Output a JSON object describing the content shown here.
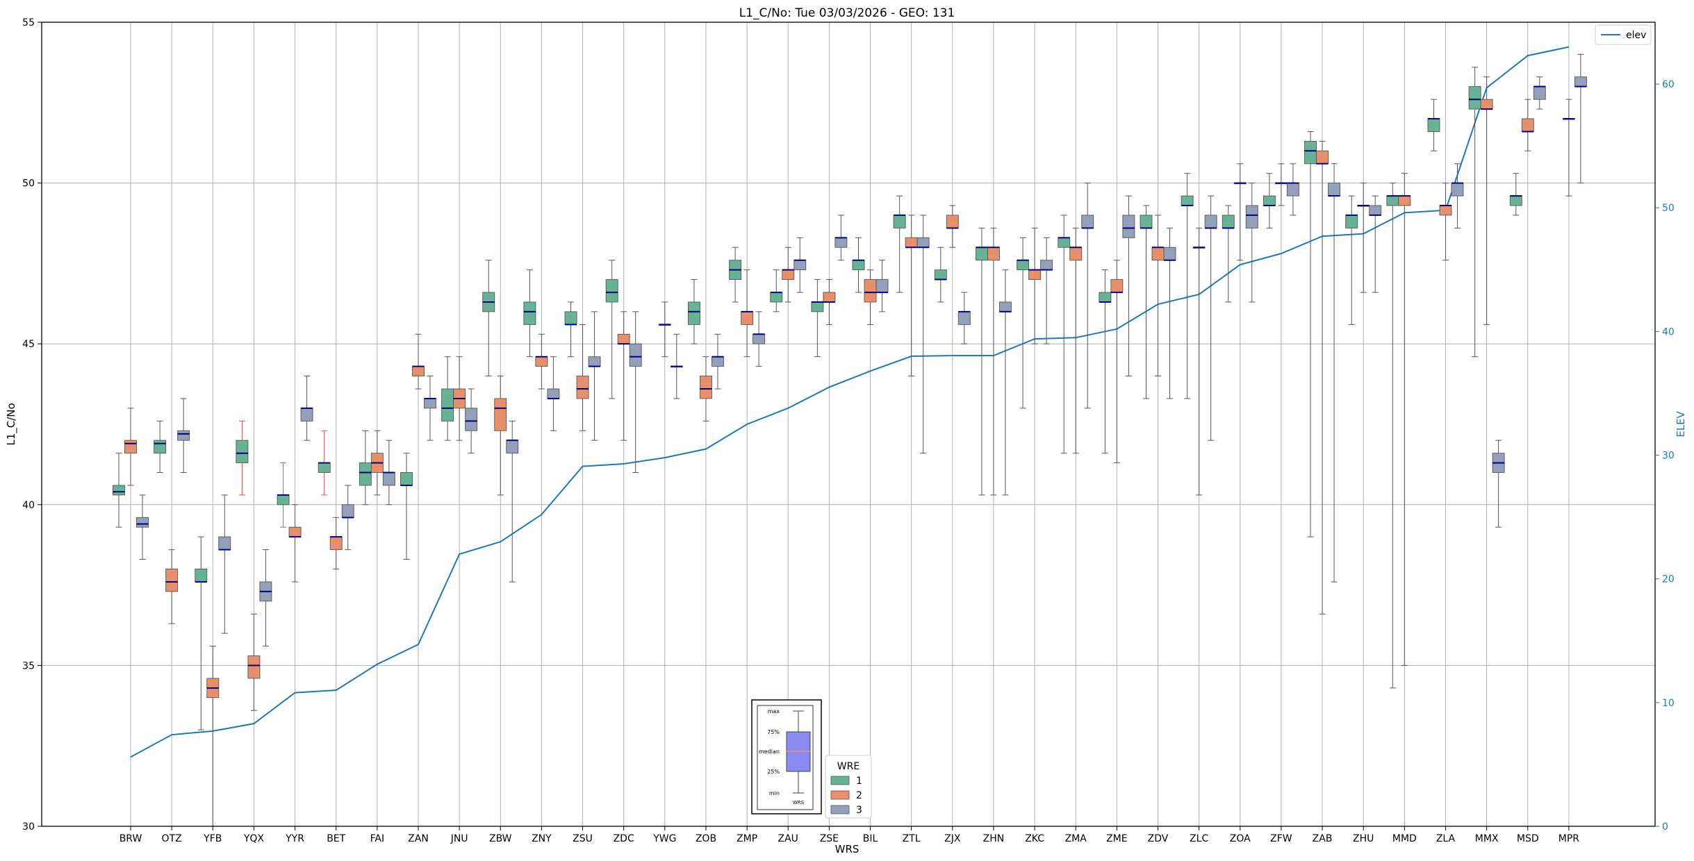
{
  "chart_data": {
    "type": "box",
    "title": "L1_C/No: Tue 03/03/2026 - GEO: 131",
    "xlabel": "WRS",
    "ylabel": "L1_C/No",
    "y2label": "ELEV",
    "ylim": [
      30,
      55
    ],
    "y2lim": [
      0,
      65
    ],
    "yticks": [
      30,
      35,
      40,
      45,
      50,
      55
    ],
    "y2ticks": [
      0,
      10,
      20,
      30,
      40,
      50,
      60
    ],
    "grid": true,
    "categories": [
      "BRW",
      "OTZ",
      "YFB",
      "YQX",
      "YYR",
      "BET",
      "FAI",
      "ZAN",
      "JNU",
      "ZBW",
      "ZNY",
      "ZSU",
      "ZDC",
      "YWG",
      "ZOB",
      "ZMP",
      "ZAU",
      "ZSE",
      "BIL",
      "ZTL",
      "ZJX",
      "ZHN",
      "ZKC",
      "ZMA",
      "ZME",
      "ZDV",
      "ZLC",
      "ZOA",
      "ZFW",
      "ZAB",
      "ZHU",
      "MMD",
      "ZLA",
      "MMX",
      "MSD",
      "MPR"
    ],
    "series_colors": {
      "1": "#66b395",
      "2": "#e8906c",
      "3": "#949fbb"
    },
    "line_color": "#1f77b4",
    "median_color": "#000080",
    "elev_line": {
      "name": "elev",
      "values": [
        5.6,
        7.4,
        7.7,
        8.3,
        10.8,
        11.0,
        13.1,
        14.7,
        22.0,
        23.0,
        25.2,
        29.1,
        29.3,
        29.8,
        30.5,
        32.5,
        33.8,
        35.5,
        36.8,
        38.0,
        38.05,
        38.05,
        39.4,
        39.5,
        40.2,
        42.2,
        43.0,
        45.4,
        46.3,
        47.7,
        47.9,
        49.6,
        49.8,
        59.7,
        62.3,
        63.0
      ]
    },
    "boxes": [
      {
        "cat": "BRW",
        "wre": 1,
        "min": 39.3,
        "q1": 40.3,
        "med": 40.4,
        "q3": 40.6,
        "max": 41.6
      },
      {
        "cat": "BRW",
        "wre": 2,
        "min": 40.6,
        "q1": 41.6,
        "med": 41.9,
        "q3": 42.0,
        "max": 43.0
      },
      {
        "cat": "BRW",
        "wre": 3,
        "min": 38.3,
        "q1": 39.3,
        "med": 39.4,
        "q3": 39.6,
        "max": 40.3
      },
      {
        "cat": "OTZ",
        "wre": 1,
        "min": 41.0,
        "q1": 41.6,
        "med": 41.9,
        "q3": 42.0,
        "max": 42.6
      },
      {
        "cat": "OTZ",
        "wre": 2,
        "min": 36.3,
        "q1": 37.3,
        "med": 37.6,
        "q3": 38.0,
        "max": 38.6
      },
      {
        "cat": "OTZ",
        "wre": 3,
        "min": 41.0,
        "q1": 42.0,
        "med": 42.2,
        "q3": 42.3,
        "max": 43.3
      },
      {
        "cat": "YFB",
        "wre": 1,
        "min": 33.0,
        "q1": 37.6,
        "med": 37.6,
        "q3": 38.0,
        "max": 39.0
      },
      {
        "cat": "YFB",
        "wre": 2,
        "min": 30.0,
        "q1": 34.0,
        "med": 34.3,
        "q3": 34.6,
        "max": 35.6
      },
      {
        "cat": "YFB",
        "wre": 3,
        "min": 36.0,
        "q1": 38.6,
        "med": 38.6,
        "q3": 39.0,
        "max": 40.3
      },
      {
        "cat": "YQX",
        "wre": 1,
        "min": 40.3,
        "q1": 41.3,
        "med": 41.6,
        "q3": 42.0,
        "max": 42.6,
        "wcolor": "#e05050"
      },
      {
        "cat": "YQX",
        "wre": 2,
        "min": 33.6,
        "q1": 34.6,
        "med": 35.0,
        "q3": 35.3,
        "max": 36.6
      },
      {
        "cat": "YQX",
        "wre": 3,
        "min": 35.6,
        "q1": 37.0,
        "med": 37.3,
        "q3": 37.6,
        "max": 38.6
      },
      {
        "cat": "YYR",
        "wre": 1,
        "min": 39.3,
        "q1": 40.0,
        "med": 40.3,
        "q3": 40.3,
        "max": 41.3,
        "wcolor": "#e05050"
      },
      {
        "cat": "YYR",
        "wre": 2,
        "min": 37.6,
        "q1": 39.0,
        "med": 39.0,
        "q3": 39.3,
        "max": 40.0
      },
      {
        "cat": "YYR",
        "wre": 3,
        "min": 42.0,
        "q1": 42.6,
        "med": 43.0,
        "q3": 43.0,
        "max": 44.0
      },
      {
        "cat": "BET",
        "wre": 1,
        "min": 40.3,
        "q1": 41.0,
        "med": 41.3,
        "q3": 41.3,
        "max": 42.3,
        "wcolor": "#e05050"
      },
      {
        "cat": "BET",
        "wre": 2,
        "min": 38.0,
        "q1": 38.6,
        "med": 39.0,
        "q3": 39.0,
        "max": 39.6
      },
      {
        "cat": "BET",
        "wre": 3,
        "min": 38.6,
        "q1": 39.6,
        "med": 39.6,
        "q3": 40.0,
        "max": 40.6
      },
      {
        "cat": "FAI",
        "wre": 1,
        "min": 40.0,
        "q1": 40.6,
        "med": 41.0,
        "q3": 41.3,
        "max": 42.3
      },
      {
        "cat": "FAI",
        "wre": 2,
        "min": 40.3,
        "q1": 41.0,
        "med": 41.3,
        "q3": 41.6,
        "max": 42.3
      },
      {
        "cat": "FAI",
        "wre": 3,
        "min": 40.0,
        "q1": 40.6,
        "med": 41.0,
        "q3": 41.0,
        "max": 42.0
      },
      {
        "cat": "ZAN",
        "wre": 1,
        "min": 38.3,
        "q1": 40.6,
        "med": 40.6,
        "q3": 41.0,
        "max": 41.6
      },
      {
        "cat": "ZAN",
        "wre": 2,
        "min": 43.6,
        "q1": 44.0,
        "med": 44.3,
        "q3": 44.3,
        "max": 45.3
      },
      {
        "cat": "ZAN",
        "wre": 3,
        "min": 42.0,
        "q1": 43.0,
        "med": 43.3,
        "q3": 43.3,
        "max": 44.0
      },
      {
        "cat": "JNU",
        "wre": 1,
        "min": 42.0,
        "q1": 42.6,
        "med": 43.0,
        "q3": 43.6,
        "max": 44.6
      },
      {
        "cat": "JNU",
        "wre": 2,
        "min": 42.0,
        "q1": 43.0,
        "med": 43.3,
        "q3": 43.6,
        "max": 44.6
      },
      {
        "cat": "JNU",
        "wre": 3,
        "min": 41.6,
        "q1": 42.3,
        "med": 42.6,
        "q3": 43.0,
        "max": 43.6
      },
      {
        "cat": "ZBW",
        "wre": 1,
        "min": 44.0,
        "q1": 46.0,
        "med": 46.3,
        "q3": 46.6,
        "max": 47.6
      },
      {
        "cat": "ZBW",
        "wre": 2,
        "min": 40.3,
        "q1": 42.3,
        "med": 43.0,
        "q3": 43.3,
        "max": 44.0
      },
      {
        "cat": "ZBW",
        "wre": 3,
        "min": 37.6,
        "q1": 41.6,
        "med": 42.0,
        "q3": 42.0,
        "max": 42.6
      },
      {
        "cat": "ZNY",
        "wre": 1,
        "min": 44.6,
        "q1": 45.6,
        "med": 46.0,
        "q3": 46.3,
        "max": 47.3
      },
      {
        "cat": "ZNY",
        "wre": 2,
        "min": 43.6,
        "q1": 44.3,
        "med": 44.6,
        "q3": 44.6,
        "max": 45.3
      },
      {
        "cat": "ZNY",
        "wre": 3,
        "min": 42.3,
        "q1": 43.3,
        "med": 43.3,
        "q3": 43.6,
        "max": 44.6
      },
      {
        "cat": "ZSU",
        "wre": 1,
        "min": 44.6,
        "q1": 45.6,
        "med": 45.6,
        "q3": 46.0,
        "max": 46.3
      },
      {
        "cat": "ZSU",
        "wre": 2,
        "min": 42.3,
        "q1": 43.3,
        "med": 43.6,
        "q3": 44.0,
        "max": 45.6
      },
      {
        "cat": "ZSU",
        "wre": 3,
        "min": 42.0,
        "q1": 44.3,
        "med": 44.3,
        "q3": 44.6,
        "max": 46.0
      },
      {
        "cat": "ZDC",
        "wre": 1,
        "min": 43.3,
        "q1": 46.3,
        "med": 46.6,
        "q3": 47.0,
        "max": 47.6
      },
      {
        "cat": "ZDC",
        "wre": 2,
        "min": 42.0,
        "q1": 45.0,
        "med": 45.0,
        "q3": 45.3,
        "max": 46.0
      },
      {
        "cat": "ZDC",
        "wre": 3,
        "min": 41.0,
        "q1": 44.3,
        "med": 44.6,
        "q3": 45.0,
        "max": 46.0
      },
      {
        "cat": "YWG",
        "wre": 2,
        "min": 44.6,
        "q1": 45.6,
        "med": 45.6,
        "q3": 45.6,
        "max": 46.3
      },
      {
        "cat": "YWG",
        "wre": 3,
        "min": 43.3,
        "q1": 44.3,
        "med": 44.3,
        "q3": 44.3,
        "max": 45.3
      },
      {
        "cat": "ZOB",
        "wre": 1,
        "min": 45.0,
        "q1": 45.6,
        "med": 46.0,
        "q3": 46.3,
        "max": 47.0
      },
      {
        "cat": "ZOB",
        "wre": 2,
        "min": 42.6,
        "q1": 43.3,
        "med": 43.6,
        "q3": 44.0,
        "max": 44.6
      },
      {
        "cat": "ZOB",
        "wre": 3,
        "min": 43.6,
        "q1": 44.3,
        "med": 44.6,
        "q3": 44.6,
        "max": 45.3
      },
      {
        "cat": "ZMP",
        "wre": 1,
        "min": 46.3,
        "q1": 47.0,
        "med": 47.3,
        "q3": 47.6,
        "max": 48.0
      },
      {
        "cat": "ZMP",
        "wre": 2,
        "min": 44.6,
        "q1": 45.6,
        "med": 46.0,
        "q3": 46.0,
        "max": 47.3
      },
      {
        "cat": "ZMP",
        "wre": 3,
        "min": 44.3,
        "q1": 45.0,
        "med": 45.3,
        "q3": 45.3,
        "max": 46.0
      },
      {
        "cat": "ZAU",
        "wre": 1,
        "min": 46.0,
        "q1": 46.3,
        "med": 46.6,
        "q3": 46.6,
        "max": 47.3
      },
      {
        "cat": "ZAU",
        "wre": 2,
        "min": 46.3,
        "q1": 47.0,
        "med": 47.3,
        "q3": 47.3,
        "max": 48.0
      },
      {
        "cat": "ZAU",
        "wre": 3,
        "min": 46.6,
        "q1": 47.3,
        "med": 47.6,
        "q3": 47.6,
        "max": 48.3
      },
      {
        "cat": "ZSE",
        "wre": 1,
        "min": 44.6,
        "q1": 46.0,
        "med": 46.3,
        "q3": 46.3,
        "max": 47.0
      },
      {
        "cat": "ZSE",
        "wre": 2,
        "min": 45.6,
        "q1": 46.3,
        "med": 46.3,
        "q3": 46.6,
        "max": 47.0
      },
      {
        "cat": "ZSE",
        "wre": 3,
        "min": 47.6,
        "q1": 48.0,
        "med": 48.3,
        "q3": 48.3,
        "max": 49.0
      },
      {
        "cat": "BIL",
        "wre": 1,
        "min": 46.6,
        "q1": 47.3,
        "med": 47.6,
        "q3": 47.6,
        "max": 48.3
      },
      {
        "cat": "BIL",
        "wre": 2,
        "min": 45.6,
        "q1": 46.3,
        "med": 46.6,
        "q3": 47.0,
        "max": 47.3
      },
      {
        "cat": "BIL",
        "wre": 3,
        "min": 46.0,
        "q1": 46.6,
        "med": 46.6,
        "q3": 47.0,
        "max": 47.6
      },
      {
        "cat": "ZTL",
        "wre": 1,
        "min": 46.6,
        "q1": 48.6,
        "med": 49.0,
        "q3": 49.0,
        "max": 49.6
      },
      {
        "cat": "ZTL",
        "wre": 2,
        "min": 44.0,
        "q1": 48.0,
        "med": 48.0,
        "q3": 48.3,
        "max": 49.0
      },
      {
        "cat": "ZTL",
        "wre": 3,
        "min": 41.6,
        "q1": 48.0,
        "med": 48.0,
        "q3": 48.3,
        "max": 49.0
      },
      {
        "cat": "ZJX",
        "wre": 1,
        "min": 46.3,
        "q1": 47.0,
        "med": 47.0,
        "q3": 47.3,
        "max": 48.0
      },
      {
        "cat": "ZJX",
        "wre": 2,
        "min": 48.0,
        "q1": 48.6,
        "med": 48.6,
        "q3": 49.0,
        "max": 49.3
      },
      {
        "cat": "ZJX",
        "wre": 3,
        "min": 45.0,
        "q1": 45.6,
        "med": 46.0,
        "q3": 46.0,
        "max": 46.6
      },
      {
        "cat": "ZHN",
        "wre": 1,
        "min": 40.3,
        "q1": 47.6,
        "med": 48.0,
        "q3": 48.0,
        "max": 48.6
      },
      {
        "cat": "ZHN",
        "wre": 2,
        "min": 40.3,
        "q1": 47.6,
        "med": 48.0,
        "q3": 48.0,
        "max": 48.6
      },
      {
        "cat": "ZHN",
        "wre": 3,
        "min": 40.3,
        "q1": 46.0,
        "med": 46.0,
        "q3": 46.3,
        "max": 47.3
      },
      {
        "cat": "ZKC",
        "wre": 1,
        "min": 43.0,
        "q1": 47.3,
        "med": 47.6,
        "q3": 47.6,
        "max": 48.3
      },
      {
        "cat": "ZKC",
        "wre": 2,
        "min": 45.0,
        "q1": 47.0,
        "med": 47.3,
        "q3": 47.3,
        "max": 48.6
      },
      {
        "cat": "ZKC",
        "wre": 3,
        "min": 45.0,
        "q1": 47.3,
        "med": 47.3,
        "q3": 47.6,
        "max": 48.3
      },
      {
        "cat": "ZMA",
        "wre": 1,
        "min": 41.6,
        "q1": 48.0,
        "med": 48.3,
        "q3": 48.3,
        "max": 49.0
      },
      {
        "cat": "ZMA",
        "wre": 2,
        "min": 41.6,
        "q1": 47.6,
        "med": 48.0,
        "q3": 48.0,
        "max": 48.6
      },
      {
        "cat": "ZMA",
        "wre": 3,
        "min": 43.0,
        "q1": 48.6,
        "med": 48.6,
        "q3": 49.0,
        "max": 50.0
      },
      {
        "cat": "ZME",
        "wre": 1,
        "min": 41.6,
        "q1": 46.3,
        "med": 46.3,
        "q3": 46.6,
        "max": 47.3
      },
      {
        "cat": "ZME",
        "wre": 2,
        "min": 41.3,
        "q1": 46.6,
        "med": 46.6,
        "q3": 47.0,
        "max": 47.6
      },
      {
        "cat": "ZME",
        "wre": 3,
        "min": 44.0,
        "q1": 48.3,
        "med": 48.6,
        "q3": 49.0,
        "max": 49.6
      },
      {
        "cat": "ZDV",
        "wre": 1,
        "min": 43.3,
        "q1": 48.6,
        "med": 48.6,
        "q3": 49.0,
        "max": 49.3
      },
      {
        "cat": "ZDV",
        "wre": 2,
        "min": 44.0,
        "q1": 47.6,
        "med": 48.0,
        "q3": 48.0,
        "max": 49.0
      },
      {
        "cat": "ZDV",
        "wre": 3,
        "min": 43.3,
        "q1": 47.6,
        "med": 47.6,
        "q3": 48.0,
        "max": 48.6
      },
      {
        "cat": "ZLC",
        "wre": 1,
        "min": 43.3,
        "q1": 49.3,
        "med": 49.3,
        "q3": 49.6,
        "max": 50.3
      },
      {
        "cat": "ZLC",
        "wre": 2,
        "min": 40.3,
        "q1": 48.0,
        "med": 48.0,
        "q3": 48.0,
        "max": 48.6
      },
      {
        "cat": "ZLC",
        "wre": 3,
        "min": 42.0,
        "q1": 48.6,
        "med": 48.6,
        "q3": 49.0,
        "max": 49.6
      },
      {
        "cat": "ZOA",
        "wre": 1,
        "min": 46.3,
        "q1": 48.6,
        "med": 48.6,
        "q3": 49.0,
        "max": 49.3
      },
      {
        "cat": "ZOA",
        "wre": 2,
        "min": 47.6,
        "q1": 50.0,
        "med": 50.0,
        "q3": 50.0,
        "max": 50.6
      },
      {
        "cat": "ZOA",
        "wre": 3,
        "min": 46.3,
        "q1": 48.6,
        "med": 49.0,
        "q3": 49.3,
        "max": 50.0
      },
      {
        "cat": "ZFW",
        "wre": 1,
        "min": 48.6,
        "q1": 49.3,
        "med": 49.3,
        "q3": 49.6,
        "max": 50.3
      },
      {
        "cat": "ZFW",
        "wre": 2,
        "min": 49.3,
        "q1": 50.0,
        "med": 50.0,
        "q3": 50.0,
        "max": 50.6
      },
      {
        "cat": "ZFW",
        "wre": 3,
        "min": 49.0,
        "q1": 49.6,
        "med": 50.0,
        "q3": 50.0,
        "max": 50.6
      },
      {
        "cat": "ZAB",
        "wre": 1,
        "min": 39.0,
        "q1": 50.6,
        "med": 51.0,
        "q3": 51.3,
        "max": 51.6
      },
      {
        "cat": "ZAB",
        "wre": 2,
        "min": 36.6,
        "q1": 50.6,
        "med": 50.6,
        "q3": 51.0,
        "max": 51.3
      },
      {
        "cat": "ZAB",
        "wre": 3,
        "min": 37.6,
        "q1": 49.6,
        "med": 49.6,
        "q3": 50.0,
        "max": 50.6
      },
      {
        "cat": "ZHU",
        "wre": 1,
        "min": 45.6,
        "q1": 48.6,
        "med": 49.0,
        "q3": 49.0,
        "max": 49.6
      },
      {
        "cat": "ZHU",
        "wre": 2,
        "min": 46.6,
        "q1": 49.3,
        "med": 49.3,
        "q3": 49.3,
        "max": 50.0
      },
      {
        "cat": "ZHU",
        "wre": 3,
        "min": 46.6,
        "q1": 49.0,
        "med": 49.0,
        "q3": 49.3,
        "max": 49.6
      },
      {
        "cat": "MMD",
        "wre": 1,
        "min": 34.3,
        "q1": 49.3,
        "med": 49.6,
        "q3": 49.6,
        "max": 50.0
      },
      {
        "cat": "MMD",
        "wre": 2,
        "min": 35.0,
        "q1": 49.3,
        "med": 49.6,
        "q3": 49.6,
        "max": 50.3
      },
      {
        "cat": "ZLA",
        "wre": 1,
        "min": 51.0,
        "q1": 51.6,
        "med": 52.0,
        "q3": 52.0,
        "max": 52.6
      },
      {
        "cat": "ZLA",
        "wre": 2,
        "min": 47.6,
        "q1": 49.0,
        "med": 49.3,
        "q3": 49.3,
        "max": 50.0
      },
      {
        "cat": "ZLA",
        "wre": 3,
        "min": 48.6,
        "q1": 49.6,
        "med": 50.0,
        "q3": 50.0,
        "max": 50.6
      },
      {
        "cat": "MMX",
        "wre": 1,
        "min": 44.6,
        "q1": 52.3,
        "med": 52.6,
        "q3": 53.0,
        "max": 53.6
      },
      {
        "cat": "MMX",
        "wre": 2,
        "min": 45.6,
        "q1": 52.3,
        "med": 52.3,
        "q3": 52.6,
        "max": 53.3
      },
      {
        "cat": "MMX",
        "wre": 3,
        "min": 39.3,
        "q1": 41.0,
        "med": 41.3,
        "q3": 41.6,
        "max": 42.0
      },
      {
        "cat": "MSD",
        "wre": 1,
        "min": 49.0,
        "q1": 49.3,
        "med": 49.6,
        "q3": 49.6,
        "max": 50.3
      },
      {
        "cat": "MSD",
        "wre": 2,
        "min": 51.0,
        "q1": 51.6,
        "med": 51.6,
        "q3": 52.0,
        "max": 52.6
      },
      {
        "cat": "MSD",
        "wre": 3,
        "min": 52.3,
        "q1": 52.6,
        "med": 53.0,
        "q3": 53.0,
        "max": 53.3
      },
      {
        "cat": "MPR",
        "wre": 2,
        "min": 49.6,
        "q1": 52.0,
        "med": 52.0,
        "q3": 52.0,
        "max": 52.6
      },
      {
        "cat": "MPR",
        "wre": 3,
        "min": 50.0,
        "q1": 53.0,
        "med": 53.0,
        "q3": 53.3,
        "max": 54.0
      }
    ]
  },
  "legend_elev": {
    "label": "elev"
  },
  "legend_wre": {
    "title": "WRE",
    "items": [
      "1",
      "2",
      "3"
    ]
  },
  "key_box": {
    "labels": {
      "max": "max",
      "q3": "75%",
      "median": "median",
      "q1": "25%",
      "min": "min"
    },
    "xlabel": "WRS"
  }
}
